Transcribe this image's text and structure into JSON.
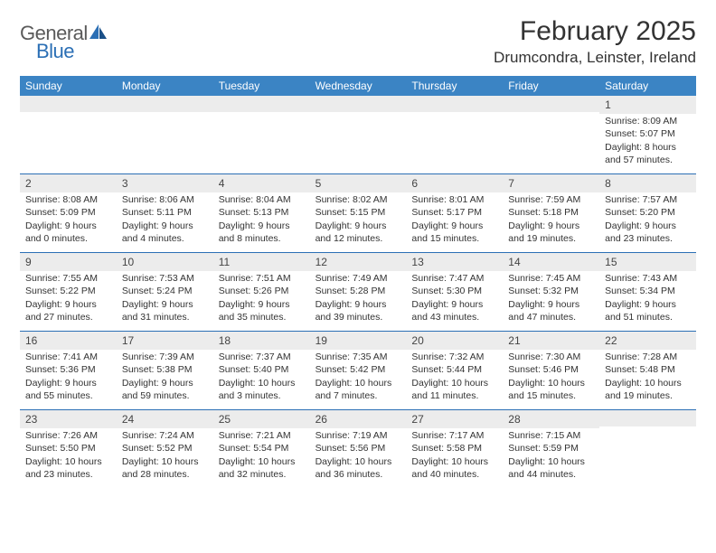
{
  "brand": {
    "general": "General",
    "blue": "Blue"
  },
  "title": "February 2025",
  "location": "Drumcondra, Leinster, Ireland",
  "colors": {
    "header_bg": "#3b84c4",
    "rule": "#2b6fb5",
    "band": "#ececec",
    "text": "#333333",
    "logo_gray": "#5a5a5a",
    "logo_blue": "#2b6fb5"
  },
  "weekdays": [
    "Sunday",
    "Monday",
    "Tuesday",
    "Wednesday",
    "Thursday",
    "Friday",
    "Saturday"
  ],
  "weeks": [
    [
      {
        "n": "",
        "sr": "",
        "ss": "",
        "d1": "",
        "d2": ""
      },
      {
        "n": "",
        "sr": "",
        "ss": "",
        "d1": "",
        "d2": ""
      },
      {
        "n": "",
        "sr": "",
        "ss": "",
        "d1": "",
        "d2": ""
      },
      {
        "n": "",
        "sr": "",
        "ss": "",
        "d1": "",
        "d2": ""
      },
      {
        "n": "",
        "sr": "",
        "ss": "",
        "d1": "",
        "d2": ""
      },
      {
        "n": "",
        "sr": "",
        "ss": "",
        "d1": "",
        "d2": ""
      },
      {
        "n": "1",
        "sr": "Sunrise: 8:09 AM",
        "ss": "Sunset: 5:07 PM",
        "d1": "Daylight: 8 hours",
        "d2": "and 57 minutes."
      }
    ],
    [
      {
        "n": "2",
        "sr": "Sunrise: 8:08 AM",
        "ss": "Sunset: 5:09 PM",
        "d1": "Daylight: 9 hours",
        "d2": "and 0 minutes."
      },
      {
        "n": "3",
        "sr": "Sunrise: 8:06 AM",
        "ss": "Sunset: 5:11 PM",
        "d1": "Daylight: 9 hours",
        "d2": "and 4 minutes."
      },
      {
        "n": "4",
        "sr": "Sunrise: 8:04 AM",
        "ss": "Sunset: 5:13 PM",
        "d1": "Daylight: 9 hours",
        "d2": "and 8 minutes."
      },
      {
        "n": "5",
        "sr": "Sunrise: 8:02 AM",
        "ss": "Sunset: 5:15 PM",
        "d1": "Daylight: 9 hours",
        "d2": "and 12 minutes."
      },
      {
        "n": "6",
        "sr": "Sunrise: 8:01 AM",
        "ss": "Sunset: 5:17 PM",
        "d1": "Daylight: 9 hours",
        "d2": "and 15 minutes."
      },
      {
        "n": "7",
        "sr": "Sunrise: 7:59 AM",
        "ss": "Sunset: 5:18 PM",
        "d1": "Daylight: 9 hours",
        "d2": "and 19 minutes."
      },
      {
        "n": "8",
        "sr": "Sunrise: 7:57 AM",
        "ss": "Sunset: 5:20 PM",
        "d1": "Daylight: 9 hours",
        "d2": "and 23 minutes."
      }
    ],
    [
      {
        "n": "9",
        "sr": "Sunrise: 7:55 AM",
        "ss": "Sunset: 5:22 PM",
        "d1": "Daylight: 9 hours",
        "d2": "and 27 minutes."
      },
      {
        "n": "10",
        "sr": "Sunrise: 7:53 AM",
        "ss": "Sunset: 5:24 PM",
        "d1": "Daylight: 9 hours",
        "d2": "and 31 minutes."
      },
      {
        "n": "11",
        "sr": "Sunrise: 7:51 AM",
        "ss": "Sunset: 5:26 PM",
        "d1": "Daylight: 9 hours",
        "d2": "and 35 minutes."
      },
      {
        "n": "12",
        "sr": "Sunrise: 7:49 AM",
        "ss": "Sunset: 5:28 PM",
        "d1": "Daylight: 9 hours",
        "d2": "and 39 minutes."
      },
      {
        "n": "13",
        "sr": "Sunrise: 7:47 AM",
        "ss": "Sunset: 5:30 PM",
        "d1": "Daylight: 9 hours",
        "d2": "and 43 minutes."
      },
      {
        "n": "14",
        "sr": "Sunrise: 7:45 AM",
        "ss": "Sunset: 5:32 PM",
        "d1": "Daylight: 9 hours",
        "d2": "and 47 minutes."
      },
      {
        "n": "15",
        "sr": "Sunrise: 7:43 AM",
        "ss": "Sunset: 5:34 PM",
        "d1": "Daylight: 9 hours",
        "d2": "and 51 minutes."
      }
    ],
    [
      {
        "n": "16",
        "sr": "Sunrise: 7:41 AM",
        "ss": "Sunset: 5:36 PM",
        "d1": "Daylight: 9 hours",
        "d2": "and 55 minutes."
      },
      {
        "n": "17",
        "sr": "Sunrise: 7:39 AM",
        "ss": "Sunset: 5:38 PM",
        "d1": "Daylight: 9 hours",
        "d2": "and 59 minutes."
      },
      {
        "n": "18",
        "sr": "Sunrise: 7:37 AM",
        "ss": "Sunset: 5:40 PM",
        "d1": "Daylight: 10 hours",
        "d2": "and 3 minutes."
      },
      {
        "n": "19",
        "sr": "Sunrise: 7:35 AM",
        "ss": "Sunset: 5:42 PM",
        "d1": "Daylight: 10 hours",
        "d2": "and 7 minutes."
      },
      {
        "n": "20",
        "sr": "Sunrise: 7:32 AM",
        "ss": "Sunset: 5:44 PM",
        "d1": "Daylight: 10 hours",
        "d2": "and 11 minutes."
      },
      {
        "n": "21",
        "sr": "Sunrise: 7:30 AM",
        "ss": "Sunset: 5:46 PM",
        "d1": "Daylight: 10 hours",
        "d2": "and 15 minutes."
      },
      {
        "n": "22",
        "sr": "Sunrise: 7:28 AM",
        "ss": "Sunset: 5:48 PM",
        "d1": "Daylight: 10 hours",
        "d2": "and 19 minutes."
      }
    ],
    [
      {
        "n": "23",
        "sr": "Sunrise: 7:26 AM",
        "ss": "Sunset: 5:50 PM",
        "d1": "Daylight: 10 hours",
        "d2": "and 23 minutes."
      },
      {
        "n": "24",
        "sr": "Sunrise: 7:24 AM",
        "ss": "Sunset: 5:52 PM",
        "d1": "Daylight: 10 hours",
        "d2": "and 28 minutes."
      },
      {
        "n": "25",
        "sr": "Sunrise: 7:21 AM",
        "ss": "Sunset: 5:54 PM",
        "d1": "Daylight: 10 hours",
        "d2": "and 32 minutes."
      },
      {
        "n": "26",
        "sr": "Sunrise: 7:19 AM",
        "ss": "Sunset: 5:56 PM",
        "d1": "Daylight: 10 hours",
        "d2": "and 36 minutes."
      },
      {
        "n": "27",
        "sr": "Sunrise: 7:17 AM",
        "ss": "Sunset: 5:58 PM",
        "d1": "Daylight: 10 hours",
        "d2": "and 40 minutes."
      },
      {
        "n": "28",
        "sr": "Sunrise: 7:15 AM",
        "ss": "Sunset: 5:59 PM",
        "d1": "Daylight: 10 hours",
        "d2": "and 44 minutes."
      },
      {
        "n": "",
        "sr": "",
        "ss": "",
        "d1": "",
        "d2": ""
      }
    ]
  ]
}
